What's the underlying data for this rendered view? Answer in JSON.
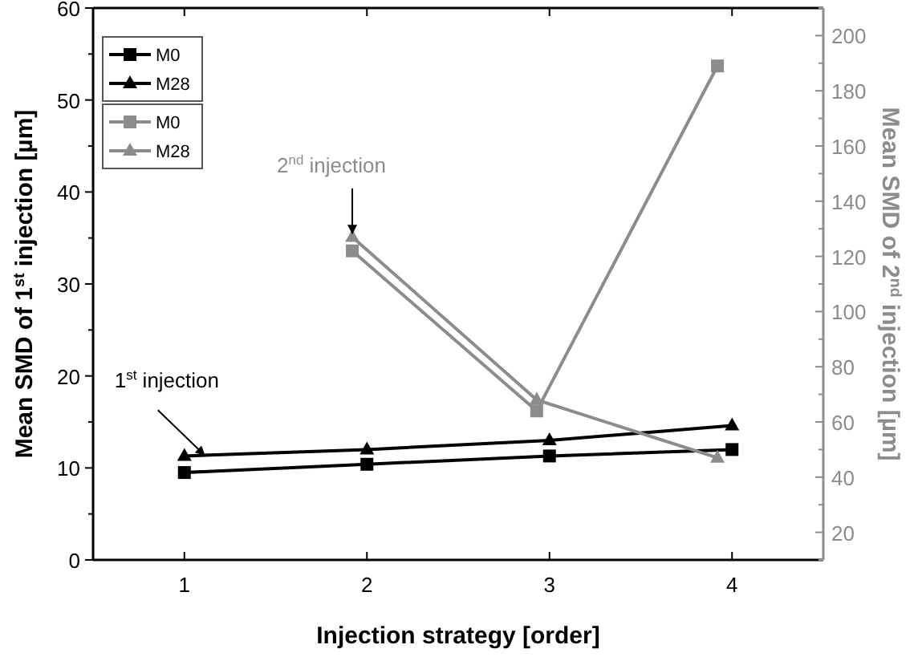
{
  "chart_data": {
    "type": "line",
    "xlabel": "Injection strategy [order]",
    "ylabel": "Mean SMD of 1$^{st}$ injection [µm]",
    "y2label": "Mean SMD of 2$^{nd}$ injection [µm]",
    "x": [
      1,
      2,
      3,
      4
    ],
    "series": [
      {
        "name": "M0",
        "color": "#000000",
        "marker": "square",
        "values": [
          9.5,
          10.4,
          11.3,
          12.0
        ]
      },
      {
        "name": "M28",
        "color": "#000000",
        "marker": "triangle",
        "values": [
          11.3,
          12.0,
          13.0,
          14.6
        ]
      },
      {
        "name": "M0",
        "color": "#8c8c8c",
        "marker": "square",
        "axis": "y2",
        "x": [
          1.92,
          2.93,
          3.92
        ],
        "values": [
          122,
          64,
          189
        ]
      },
      {
        "name": "M28",
        "color": "#8c8c8c",
        "marker": "triangle",
        "axis": "y2",
        "x": [
          1.92,
          2.93,
          3.92
        ],
        "values": [
          127,
          68,
          47
        ]
      }
    ],
    "xlim": [
      0.5,
      4.5
    ],
    "xticks": [
      1,
      2,
      3,
      4
    ],
    "ylim": [
      0,
      60
    ],
    "yticks": [
      0,
      10,
      20,
      30,
      40,
      50,
      60
    ],
    "y2lim": [
      10,
      210
    ],
    "y2ticks": [
      20,
      40,
      60,
      80,
      100,
      120,
      140,
      160,
      180,
      200
    ],
    "annotations": [
      {
        "text": "1$^{st}$ injection",
        "x": 1.11,
        "y": 11.4
      },
      {
        "text": "2$^{nd}$ injection",
        "x": 1.92,
        "y": 35.5
      }
    ],
    "legend": "top left",
    "grid": false,
    "line_style": "solid"
  }
}
